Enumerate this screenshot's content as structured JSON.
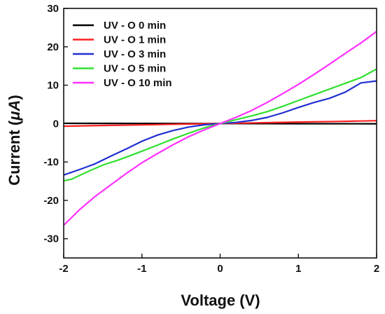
{
  "chart_data": {
    "type": "line",
    "xlabel": "Voltage (V)",
    "ylabel_prefix": "Current (",
    "ylabel_unit": "μA",
    "ylabel_suffix": ")",
    "xlim": [
      -2,
      2
    ],
    "ylim": [
      -35,
      30
    ],
    "x_ticks": [
      -2,
      -1,
      0,
      1,
      2
    ],
    "y_ticks": [
      -30,
      -20,
      -10,
      0,
      10,
      20,
      30
    ],
    "grid": false,
    "legend_position": "top-left",
    "series": [
      {
        "name": "UV - O 0 min",
        "color": "#000000",
        "points": [
          [
            -2,
            0.05
          ],
          [
            -1,
            0.03
          ],
          [
            0,
            0
          ],
          [
            1,
            -0.03
          ],
          [
            2,
            -0.05
          ]
        ]
      },
      {
        "name": "UV - O 1 min",
        "color": "#ff2020",
        "points": [
          [
            -2,
            -0.7
          ],
          [
            -1.5,
            -0.5
          ],
          [
            -1,
            -0.35
          ],
          [
            -0.5,
            -0.15
          ],
          [
            0,
            0
          ],
          [
            0.5,
            0.2
          ],
          [
            1,
            0.4
          ],
          [
            1.5,
            0.55
          ],
          [
            2,
            0.75
          ]
        ]
      },
      {
        "name": "UV - O 3 min",
        "color": "#2030d0",
        "points": [
          [
            -2,
            -13.4
          ],
          [
            -1.8,
            -12
          ],
          [
            -1.6,
            -10.5
          ],
          [
            -1.4,
            -8.5
          ],
          [
            -1.2,
            -6.6
          ],
          [
            -1,
            -4.6
          ],
          [
            -0.8,
            -3
          ],
          [
            -0.6,
            -1.8
          ],
          [
            -0.4,
            -0.9
          ],
          [
            -0.2,
            -0.3
          ],
          [
            0,
            0
          ],
          [
            0.2,
            0.3
          ],
          [
            0.4,
            0.8
          ],
          [
            0.6,
            1.6
          ],
          [
            0.8,
            2.8
          ],
          [
            1,
            4.2
          ],
          [
            1.2,
            5.5
          ],
          [
            1.4,
            6.6
          ],
          [
            1.6,
            8.2
          ],
          [
            1.8,
            10.6
          ],
          [
            2,
            11.1
          ]
        ]
      },
      {
        "name": "UV - O 5 min",
        "color": "#30e030",
        "points": [
          [
            -2,
            -14.9
          ],
          [
            -1.9,
            -14.5
          ],
          [
            -1.7,
            -12.6
          ],
          [
            -1.5,
            -10.8
          ],
          [
            -1.3,
            -9.5
          ],
          [
            -1,
            -7.2
          ],
          [
            -0.8,
            -5.6
          ],
          [
            -0.6,
            -4
          ],
          [
            -0.4,
            -2.5
          ],
          [
            -0.2,
            -1.1
          ],
          [
            0,
            0
          ],
          [
            0.2,
            1
          ],
          [
            0.4,
            2
          ],
          [
            0.6,
            3.1
          ],
          [
            0.8,
            4.5
          ],
          [
            1,
            6
          ],
          [
            1.2,
            7.5
          ],
          [
            1.4,
            9
          ],
          [
            1.6,
            10.5
          ],
          [
            1.8,
            12
          ],
          [
            2,
            14.2
          ]
        ]
      },
      {
        "name": "UV - O 10 min",
        "color": "#ff30ff",
        "points": [
          [
            -2,
            -26.5
          ],
          [
            -1.8,
            -22.5
          ],
          [
            -1.6,
            -19
          ],
          [
            -1.4,
            -16
          ],
          [
            -1.2,
            -13
          ],
          [
            -1,
            -10.2
          ],
          [
            -0.8,
            -7.8
          ],
          [
            -0.6,
            -5.5
          ],
          [
            -0.4,
            -3.4
          ],
          [
            -0.2,
            -1.6
          ],
          [
            0,
            0
          ],
          [
            0.2,
            1.6
          ],
          [
            0.4,
            3.4
          ],
          [
            0.6,
            5.5
          ],
          [
            0.8,
            7.8
          ],
          [
            1,
            10.2
          ],
          [
            1.2,
            12.8
          ],
          [
            1.4,
            15.5
          ],
          [
            1.6,
            18.3
          ],
          [
            1.8,
            21
          ],
          [
            2,
            24
          ]
        ]
      }
    ]
  }
}
